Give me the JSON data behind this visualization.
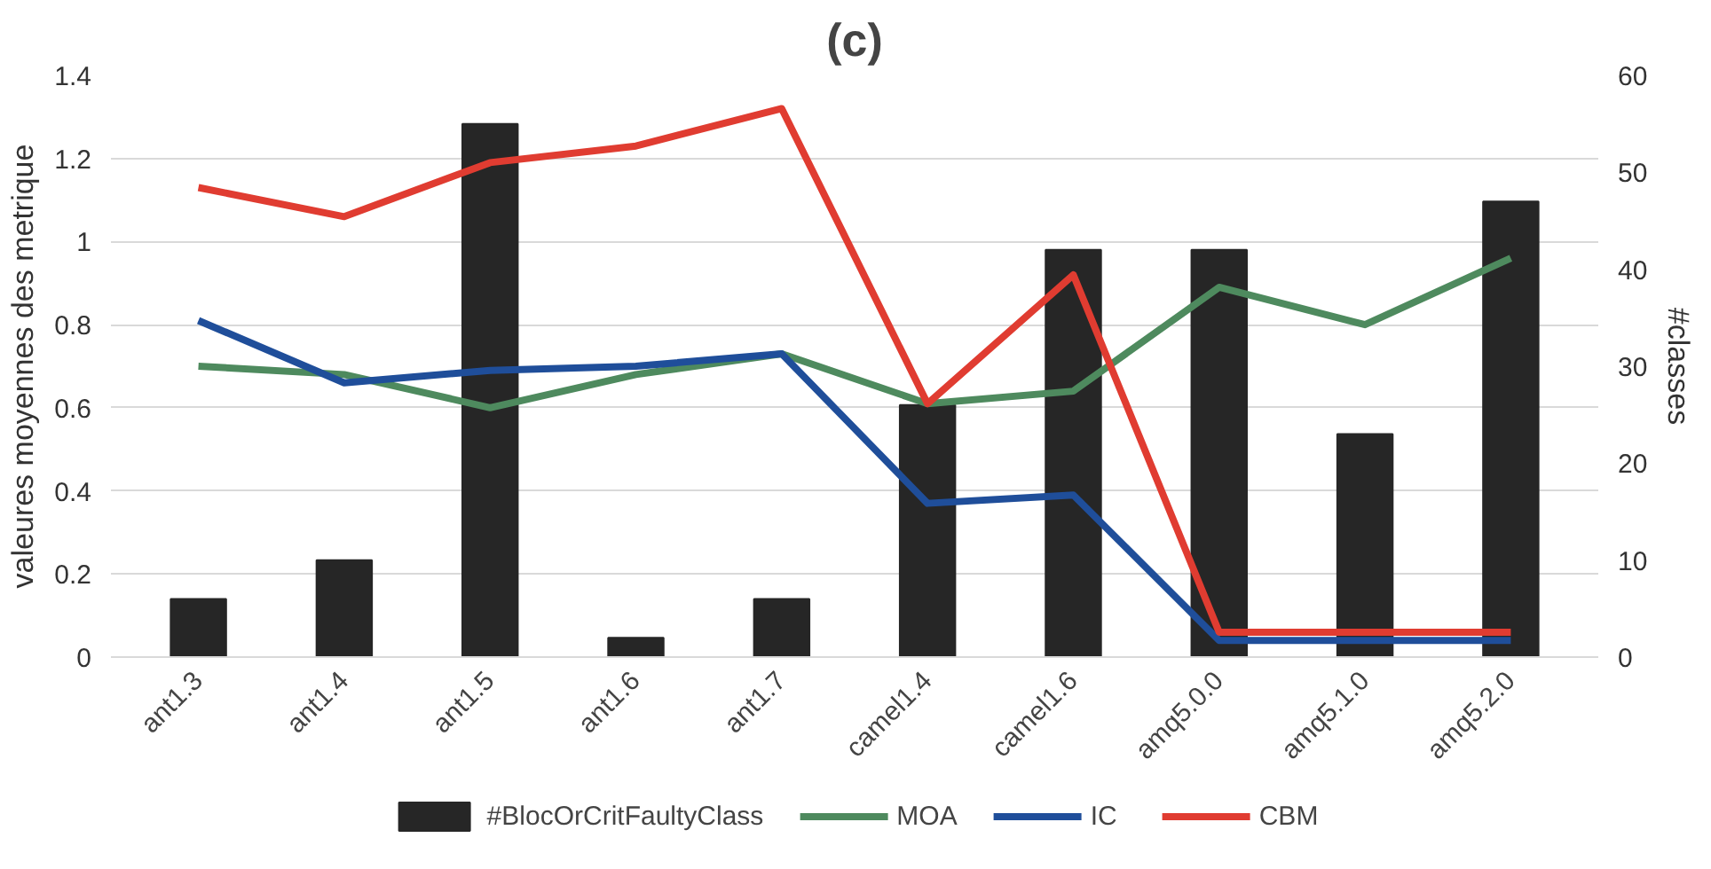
{
  "chart_data": {
    "type": "bar",
    "title": "(c)",
    "ylabel": "valeures moyennes des metrique",
    "y2label": "#classes",
    "categories": [
      "ant1.3",
      "ant1.4",
      "ant1.5",
      "ant1.6",
      "ant1.7",
      "camel1.4",
      "camel1.6",
      "amq5.0.0",
      "amq5.1.0",
      "amq5.2.0"
    ],
    "series": [
      {
        "name": "#BlocOrCritFaultyClass",
        "type": "bar",
        "axis": "y2",
        "color": "#262626",
        "values": [
          6,
          10,
          55,
          2,
          6,
          26,
          42,
          42,
          23,
          47
        ]
      },
      {
        "name": "MOA",
        "type": "line",
        "color": "#4e8a5e",
        "values": [
          0.7,
          0.68,
          0.6,
          0.68,
          0.73,
          0.61,
          0.64,
          0.89,
          0.8,
          0.96
        ]
      },
      {
        "name": "IC",
        "type": "line",
        "color": "#1f4e9a",
        "values": [
          0.81,
          0.66,
          0.69,
          0.7,
          0.73,
          0.37,
          0.39,
          0.04,
          0.04,
          0.04
        ]
      },
      {
        "name": "CBM",
        "type": "line",
        "color": "#e03c31",
        "values": [
          1.13,
          1.06,
          1.19,
          1.23,
          1.32,
          0.61,
          0.92,
          0.06,
          0.06,
          0.06
        ]
      }
    ],
    "ylim": [
      0,
      1.4
    ],
    "yticks": [
      0,
      0.2,
      0.4,
      0.6,
      0.8,
      1,
      1.2,
      1.4
    ],
    "y2lim": [
      0,
      60
    ],
    "y2ticks": [
      0,
      10,
      20,
      30,
      40,
      50,
      60
    ],
    "grid": "y",
    "legend": "bottom"
  }
}
